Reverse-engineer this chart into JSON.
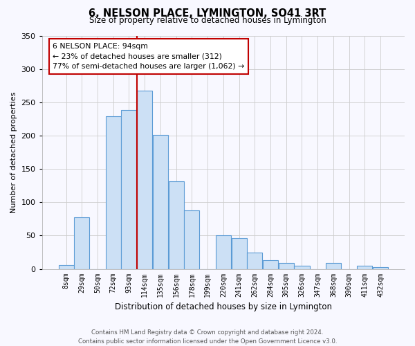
{
  "title": "6, NELSON PLACE, LYMINGTON, SO41 3RT",
  "subtitle": "Size of property relative to detached houses in Lymington",
  "xlabel": "Distribution of detached houses by size in Lymington",
  "ylabel": "Number of detached properties",
  "bar_labels": [
    "8sqm",
    "29sqm",
    "50sqm",
    "72sqm",
    "93sqm",
    "114sqm",
    "135sqm",
    "156sqm",
    "178sqm",
    "199sqm",
    "220sqm",
    "241sqm",
    "262sqm",
    "284sqm",
    "305sqm",
    "326sqm",
    "347sqm",
    "368sqm",
    "390sqm",
    "411sqm",
    "432sqm"
  ],
  "bar_values": [
    6,
    77,
    0,
    229,
    238,
    267,
    201,
    131,
    88,
    0,
    50,
    46,
    24,
    13,
    9,
    5,
    0,
    9,
    0,
    5,
    3
  ],
  "bar_color": "#cce0f5",
  "bar_edge_color": "#5b9bd5",
  "vline_index": 4,
  "vline_color": "#c00000",
  "annotation_title": "6 NELSON PLACE: 94sqm",
  "annotation_line1": "← 23% of detached houses are smaller (312)",
  "annotation_line2": "77% of semi-detached houses are larger (1,062) →",
  "annotation_box_color": "#c00000",
  "ylim": [
    0,
    350
  ],
  "yticks": [
    0,
    50,
    100,
    150,
    200,
    250,
    300,
    350
  ],
  "footer_line1": "Contains HM Land Registry data © Crown copyright and database right 2024.",
  "footer_line2": "Contains public sector information licensed under the Open Government Licence v3.0.",
  "background_color": "#f8f8ff",
  "grid_color": "#cccccc"
}
